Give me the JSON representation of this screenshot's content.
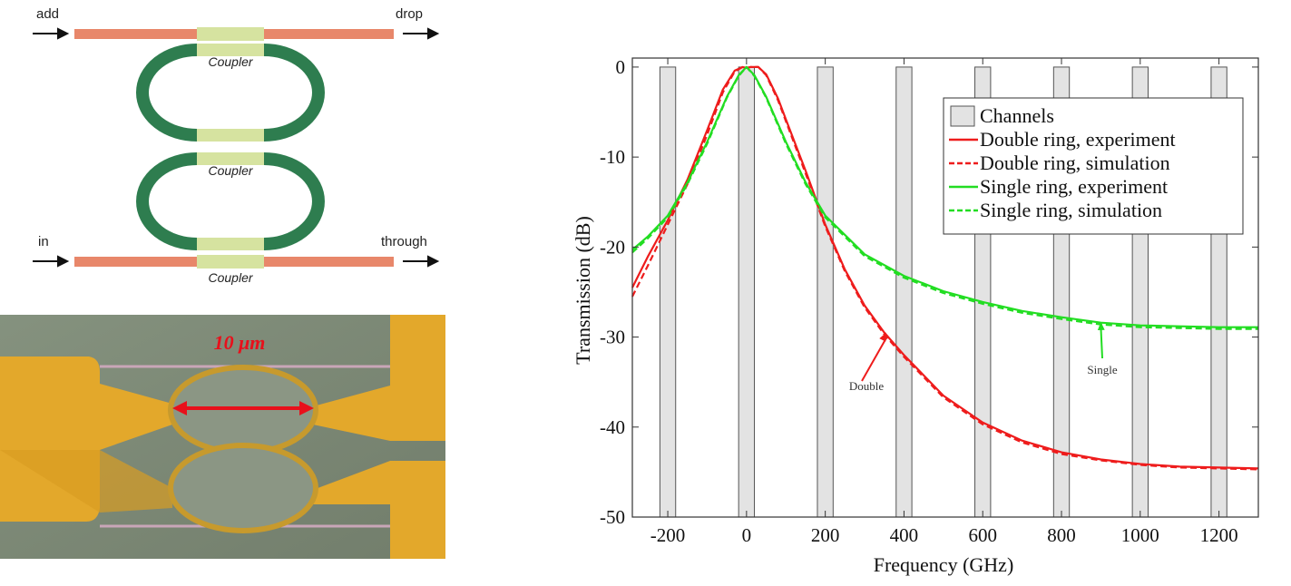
{
  "schematic": {
    "labels": {
      "add": "add",
      "drop": "drop",
      "in": "in",
      "through": "through"
    },
    "coupler_label": "Coupler",
    "colors": {
      "bus": "#e8876a",
      "coupler": "#d6e3a0",
      "ring": "#2e7d4f"
    }
  },
  "micrograph": {
    "scale_label": "10 μm",
    "colors": {
      "gold": "#e3a82b",
      "background": "#7d8a76",
      "scale": "#e8101b"
    }
  },
  "chart_data": {
    "type": "line",
    "xlabel": "Frequency (GHz)",
    "ylabel": "Transmission (dB)",
    "xlim": [
      -290,
      1300
    ],
    "ylim": [
      -50,
      1
    ],
    "xticks": [
      -200,
      0,
      200,
      400,
      600,
      800,
      1000,
      1200
    ],
    "yticks": [
      0,
      -10,
      -20,
      -30,
      -40,
      -50
    ],
    "tick_labels_x": [
      "-200",
      "0",
      "200",
      "400",
      "600",
      "800",
      "1000",
      "1200"
    ],
    "tick_labels_y": [
      "0",
      "-10",
      "-20",
      "-30",
      "-40",
      "-50"
    ],
    "legend_position": "top-right",
    "channels": {
      "name": "Channels",
      "centers": [
        -200,
        0,
        200,
        400,
        600,
        800,
        1000,
        1200
      ],
      "width": 40,
      "color": "#e3e3e3"
    },
    "series": [
      {
        "name": "Double ring, experiment",
        "color": "#ee1c1c",
        "dash": "solid",
        "x": [
          -290,
          -250,
          -200,
          -150,
          -100,
          -60,
          -30,
          -10,
          0,
          10,
          30,
          50,
          80,
          100,
          150,
          200,
          250,
          300,
          350,
          400,
          500,
          600,
          700,
          800,
          900,
          1000,
          1100,
          1200,
          1300
        ],
        "y": [
          -24.5,
          -21,
          -17,
          -12.5,
          -7,
          -2.5,
          -0.4,
          0,
          -0.1,
          0,
          0,
          -0.8,
          -3.5,
          -5.8,
          -11.5,
          -17.5,
          -22.5,
          -26.5,
          -29.5,
          -32,
          -36.5,
          -39.5,
          -41.5,
          -42.8,
          -43.6,
          -44.1,
          -44.4,
          -44.5,
          -44.6
        ]
      },
      {
        "name": "Double ring, simulation",
        "color": "#ee1c1c",
        "dash": "dashed",
        "x": [
          -290,
          -250,
          -200,
          -150,
          -100,
          -60,
          -30,
          -10,
          0,
          10,
          30,
          50,
          80,
          100,
          150,
          200,
          250,
          300,
          350,
          400,
          500,
          600,
          700,
          800,
          900,
          1000,
          1100,
          1200,
          1300
        ],
        "y": [
          -25.5,
          -22,
          -17.5,
          -13,
          -7.5,
          -2.8,
          -0.5,
          0,
          -0.1,
          0,
          0,
          -0.9,
          -3.7,
          -6,
          -11.8,
          -17.7,
          -22.7,
          -26.7,
          -29.7,
          -32.2,
          -36.7,
          -39.7,
          -41.7,
          -43,
          -43.7,
          -44.2,
          -44.5,
          -44.6,
          -44.7
        ]
      },
      {
        "name": "Single ring, experiment",
        "color": "#22dd22",
        "dash": "solid",
        "x": [
          -290,
          -250,
          -200,
          -150,
          -100,
          -50,
          -20,
          0,
          20,
          50,
          100,
          150,
          200,
          300,
          400,
          500,
          600,
          700,
          800,
          900,
          1000,
          1100,
          1200,
          1300
        ],
        "y": [
          -20.3,
          -18.8,
          -16.5,
          -12.8,
          -8.3,
          -3.3,
          -0.9,
          0,
          -0.9,
          -3.3,
          -8.3,
          -12.8,
          -16.5,
          -20.8,
          -23.2,
          -24.9,
          -26.1,
          -27.1,
          -27.8,
          -28.4,
          -28.7,
          -28.8,
          -28.9,
          -28.9
        ]
      },
      {
        "name": "Single ring, simulation",
        "color": "#22dd22",
        "dash": "dashed",
        "x": [
          -290,
          -250,
          -200,
          -150,
          -100,
          -50,
          -20,
          0,
          20,
          50,
          100,
          150,
          200,
          300,
          400,
          500,
          600,
          700,
          800,
          900,
          1000,
          1100,
          1200,
          1300
        ],
        "y": [
          -20.6,
          -19,
          -16.7,
          -13,
          -8.5,
          -3.4,
          -1,
          0,
          -1,
          -3.4,
          -8.5,
          -13,
          -16.7,
          -21,
          -23.4,
          -25.1,
          -26.3,
          -27.3,
          -28,
          -28.6,
          -28.9,
          -29,
          -29.1,
          -29.1
        ]
      }
    ],
    "annotations": [
      {
        "text": "Double",
        "color": "#ee1c1c",
        "arrow_to": [
          355,
          -29.5
        ]
      },
      {
        "text": "Single",
        "color": "#22dd22",
        "arrow_to": [
          900,
          -28.3
        ]
      }
    ]
  }
}
